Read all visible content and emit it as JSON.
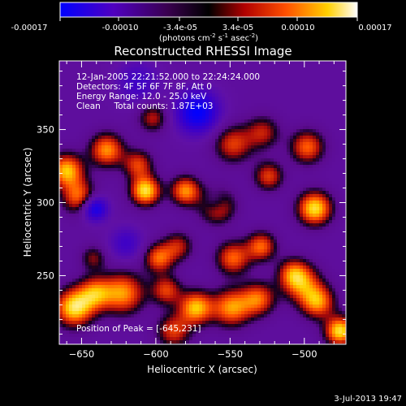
{
  "colorbar": {
    "ticks": [
      "-0.00017",
      "-0.00010",
      "-3.4e-05",
      "3.4e-05",
      "0.00010",
      "0.00017"
    ],
    "units": {
      "prefix": "(photons cm",
      "exp1": "-2",
      "mid": " s",
      "exp2": "-1",
      "mid2": " asec",
      "exp3": "-2",
      "suffix": ")"
    }
  },
  "chart_data": {
    "type": "heatmap",
    "title": "Reconstructed RHESSI Image",
    "xlabel": "Heliocentric X (arcsec)",
    "ylabel": "Heliocentric Y (arcsec)",
    "xlim": [
      -665,
      -472
    ],
    "ylim": [
      203,
      397
    ],
    "xticks": [
      -650,
      -600,
      -550,
      -500
    ],
    "yticks": [
      250,
      300,
      350
    ],
    "colormap": [
      "#0000ff",
      "#6a00b4",
      "#000000",
      "#c01010",
      "#ff6a00",
      "#ffff00",
      "#ffffff"
    ],
    "value_range": [
      -0.00017,
      0.00017
    ],
    "peak": [
      -645,
      231
    ],
    "annotations": [
      "12-Jan-2005 22:21:52.000 to 22:24:24.000",
      "Detectors: 4F 5F 6F 7F 8F, Att 0",
      "Energy Range: 12.0 - 25.0 keV",
      "Clean     Total counts: 1.87E+03"
    ],
    "peak_label": "Position of Peak = [-645,231]"
  },
  "footer": {
    "timestamp": "3-Jul-2013 19:47"
  }
}
